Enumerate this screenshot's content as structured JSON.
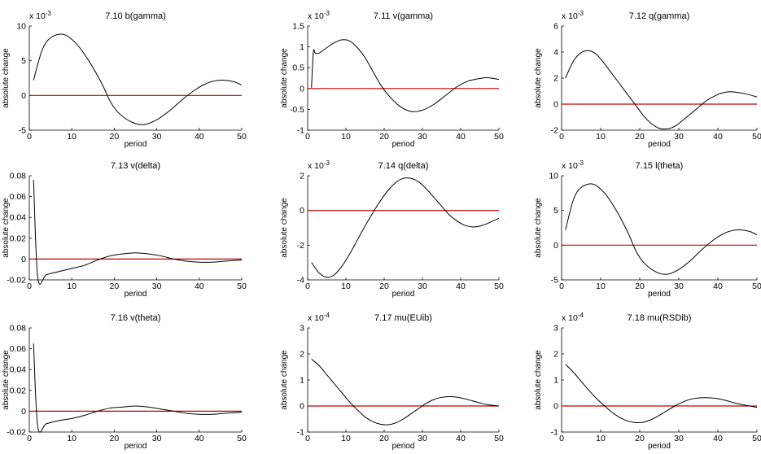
{
  "chart_data": [
    {
      "type": "line",
      "title": "7.10 b(gamma)",
      "xlabel": "period",
      "ylabel": "absolute change",
      "exponent": {
        "base": "x 10",
        "power": "-3"
      },
      "xlim": [
        0,
        50
      ],
      "ylim": [
        -5,
        10
      ],
      "xticks": [
        0,
        10,
        20,
        30,
        40,
        50
      ],
      "yticks": [
        -5,
        0,
        5,
        10
      ],
      "ytick_labels": [
        "-5",
        "0",
        "5",
        "10"
      ],
      "reference_line": 0,
      "series": [
        {
          "x": [
            1,
            3,
            5,
            8,
            11,
            14,
            17,
            19,
            21,
            24,
            27,
            30,
            33,
            36,
            39,
            42,
            45,
            48,
            50
          ],
          "y": [
            2.2,
            6.5,
            8.3,
            8.8,
            7.5,
            5.0,
            1.8,
            -0.8,
            -2.5,
            -3.8,
            -4.2,
            -3.5,
            -2.2,
            -0.6,
            0.8,
            1.8,
            2.2,
            2.0,
            1.5
          ]
        }
      ]
    },
    {
      "type": "line",
      "title": "7.11 v(gamma)",
      "xlabel": "period",
      "ylabel": "absolute change",
      "exponent": {
        "base": "x 10",
        "power": "-3"
      },
      "xlim": [
        0,
        50
      ],
      "ylim": [
        -1,
        1.5
      ],
      "xticks": [
        0,
        10,
        20,
        30,
        40,
        50
      ],
      "yticks": [
        -1,
        -0.5,
        0,
        0.5,
        1,
        1.5
      ],
      "ytick_labels": [
        "-1",
        "-0.5",
        "0",
        "0.5",
        "1",
        "1.5"
      ],
      "reference_line": 0,
      "series": [
        {
          "x": [
            1,
            1.5,
            2,
            3,
            5,
            7,
            9,
            11,
            13,
            15,
            17,
            19,
            21,
            24,
            27,
            30,
            33,
            36,
            39,
            42,
            45,
            47,
            50
          ],
          "y": [
            0.02,
            0.88,
            0.85,
            0.85,
            0.98,
            1.1,
            1.17,
            1.14,
            0.98,
            0.74,
            0.42,
            0.1,
            -0.15,
            -0.42,
            -0.55,
            -0.52,
            -0.38,
            -0.17,
            0.04,
            0.18,
            0.24,
            0.26,
            0.22
          ]
        }
      ]
    },
    {
      "type": "line",
      "title": "7.12 q(gamma)",
      "xlabel": "period",
      "ylabel": "absolute change",
      "exponent": {
        "base": "x 10",
        "power": "-3"
      },
      "xlim": [
        0,
        50
      ],
      "ylim": [
        -2,
        6
      ],
      "xticks": [
        0,
        10,
        20,
        30,
        40,
        50
      ],
      "yticks": [
        -2,
        0,
        2,
        4,
        6
      ],
      "ytick_labels": [
        "-2",
        "0",
        "2",
        "4",
        "6"
      ],
      "reference_line": 0,
      "series": [
        {
          "x": [
            1,
            3,
            5,
            7,
            9,
            11,
            13,
            15,
            17,
            19,
            21,
            23,
            25,
            27,
            29,
            31,
            33,
            35,
            37,
            39,
            41,
            43,
            45,
            47,
            50
          ],
          "y": [
            2.0,
            3.3,
            3.95,
            4.1,
            3.8,
            3.1,
            2.3,
            1.5,
            0.7,
            -0.1,
            -0.9,
            -1.5,
            -1.85,
            -1.9,
            -1.7,
            -1.25,
            -0.75,
            -0.25,
            0.25,
            0.6,
            0.85,
            0.95,
            0.9,
            0.8,
            0.55
          ]
        }
      ]
    },
    {
      "type": "line",
      "title": "7.13 v(delta)",
      "xlabel": "period",
      "ylabel": "absolute change",
      "xlim": [
        0,
        50
      ],
      "ylim": [
        -0.02,
        0.08
      ],
      "xticks": [
        0,
        10,
        20,
        30,
        40,
        50
      ],
      "yticks": [
        -0.02,
        0,
        0.02,
        0.04,
        0.06,
        0.08
      ],
      "ytick_labels": [
        "-0.02",
        "0",
        "0.02",
        "0.04",
        "0.06",
        "0.08"
      ],
      "reference_line": 0,
      "series": [
        {
          "x": [
            1,
            2,
            4,
            7,
            10,
            13,
            16,
            19,
            22,
            25,
            28,
            31,
            34,
            37,
            40,
            43,
            46,
            50
          ],
          "y": [
            0.076,
            -0.018,
            -0.015,
            -0.012,
            -0.009,
            -0.006,
            -0.001,
            0.003,
            0.005,
            0.006,
            0.005,
            0.003,
            0.0,
            -0.002,
            -0.003,
            -0.003,
            -0.002,
            -0.001
          ]
        }
      ]
    },
    {
      "type": "line",
      "title": "7.14 q(delta)",
      "xlabel": "period",
      "ylabel": "absolute change",
      "exponent": {
        "base": "x 10",
        "power": "-3"
      },
      "xlim": [
        0,
        50
      ],
      "ylim": [
        -4,
        2
      ],
      "xticks": [
        0,
        10,
        20,
        30,
        40,
        50
      ],
      "yticks": [
        -4,
        -2,
        0,
        2
      ],
      "ytick_labels": [
        "-4",
        "-2",
        "0",
        "2"
      ],
      "reference_line": 0,
      "series": [
        {
          "x": [
            1,
            3,
            5,
            7,
            9,
            11,
            13,
            15,
            17,
            19,
            21,
            23,
            25,
            27,
            29,
            31,
            33,
            35,
            37,
            39,
            41,
            43,
            45,
            47,
            50
          ],
          "y": [
            -3.0,
            -3.6,
            -3.85,
            -3.7,
            -3.2,
            -2.5,
            -1.7,
            -0.9,
            -0.15,
            0.55,
            1.15,
            1.6,
            1.85,
            1.85,
            1.65,
            1.25,
            0.75,
            0.25,
            -0.25,
            -0.6,
            -0.85,
            -0.95,
            -0.9,
            -0.75,
            -0.45
          ]
        }
      ]
    },
    {
      "type": "line",
      "title": "7.15 l(theta)",
      "xlabel": "period",
      "ylabel": "absolute change",
      "exponent": {
        "base": "x 10",
        "power": "-3"
      },
      "xlim": [
        0,
        50
      ],
      "ylim": [
        -5,
        10
      ],
      "xticks": [
        0,
        10,
        20,
        30,
        40,
        50
      ],
      "yticks": [
        -5,
        0,
        5,
        10
      ],
      "ytick_labels": [
        "-5",
        "0",
        "5",
        "10"
      ],
      "reference_line": 0,
      "series": [
        {
          "x": [
            1,
            3,
            5,
            8,
            11,
            14,
            17,
            19,
            21,
            24,
            27,
            30,
            33,
            36,
            39,
            42,
            45,
            48,
            50
          ],
          "y": [
            2.2,
            6.5,
            8.3,
            8.8,
            7.5,
            5.0,
            1.8,
            -0.8,
            -2.5,
            -3.8,
            -4.2,
            -3.5,
            -2.2,
            -0.6,
            0.8,
            1.8,
            2.2,
            2.0,
            1.5
          ]
        }
      ]
    },
    {
      "type": "line",
      "title": "7.16 v(theta)",
      "xlabel": "period",
      "ylabel": "absolute change",
      "xlim": [
        0,
        50
      ],
      "ylim": [
        -0.02,
        0.08
      ],
      "xticks": [
        0,
        10,
        20,
        30,
        40,
        50
      ],
      "yticks": [
        -0.02,
        0,
        0.02,
        0.04,
        0.06,
        0.08
      ],
      "ytick_labels": [
        "-0.02",
        "0",
        "0.02",
        "0.04",
        "0.06",
        "0.08"
      ],
      "reference_line": 0,
      "series": [
        {
          "x": [
            1,
            2,
            4,
            7,
            10,
            13,
            16,
            19,
            22,
            25,
            28,
            31,
            34,
            37,
            40,
            43,
            46,
            50
          ],
          "y": [
            0.065,
            -0.015,
            -0.012,
            -0.009,
            -0.007,
            -0.004,
            0.0,
            0.003,
            0.004,
            0.005,
            0.004,
            0.002,
            0.0,
            -0.002,
            -0.003,
            -0.003,
            -0.002,
            -0.001
          ]
        }
      ]
    },
    {
      "type": "line",
      "title": "7.17 mu(EUib)",
      "xlabel": "period",
      "ylabel": "absolute change",
      "exponent": {
        "base": "x 10",
        "power": "-4"
      },
      "xlim": [
        0,
        50
      ],
      "ylim": [
        -1,
        3
      ],
      "xticks": [
        0,
        10,
        20,
        30,
        40,
        50
      ],
      "yticks": [
        -1,
        0,
        1,
        2,
        3
      ],
      "ytick_labels": [
        "-1",
        "0",
        "1",
        "2",
        "3"
      ],
      "reference_line": 0,
      "series": [
        {
          "x": [
            1,
            3,
            5,
            7,
            9,
            11,
            13,
            15,
            17,
            19,
            21,
            23,
            25,
            27,
            29,
            31,
            33,
            35,
            37,
            39,
            41,
            43,
            45,
            47,
            50
          ],
          "y": [
            1.8,
            1.55,
            1.2,
            0.85,
            0.5,
            0.15,
            -0.15,
            -0.42,
            -0.6,
            -0.7,
            -0.72,
            -0.65,
            -0.5,
            -0.3,
            -0.1,
            0.1,
            0.25,
            0.33,
            0.36,
            0.34,
            0.28,
            0.2,
            0.12,
            0.05,
            0.0
          ]
        }
      ]
    },
    {
      "type": "line",
      "title": "7.18 mu(RSDib)",
      "xlabel": "period",
      "ylabel": "absolute change",
      "exponent": {
        "base": "x 10",
        "power": "-4"
      },
      "xlim": [
        0,
        50
      ],
      "ylim": [
        -1,
        3
      ],
      "xticks": [
        0,
        10,
        20,
        30,
        40,
        50
      ],
      "yticks": [
        -1,
        0,
        1,
        2,
        3
      ],
      "ytick_labels": [
        "-1",
        "0",
        "1",
        "2",
        "3"
      ],
      "reference_line": 0,
      "series": [
        {
          "x": [
            1,
            3,
            5,
            7,
            9,
            11,
            13,
            15,
            17,
            19,
            21,
            23,
            25,
            27,
            29,
            31,
            33,
            35,
            37,
            39,
            41,
            43,
            45,
            47,
            50
          ],
          "y": [
            1.6,
            1.3,
            0.95,
            0.6,
            0.28,
            0.0,
            -0.25,
            -0.45,
            -0.58,
            -0.64,
            -0.62,
            -0.52,
            -0.36,
            -0.18,
            0.0,
            0.15,
            0.26,
            0.31,
            0.32,
            0.3,
            0.25,
            0.17,
            0.09,
            0.03,
            -0.05
          ]
        }
      ]
    }
  ]
}
